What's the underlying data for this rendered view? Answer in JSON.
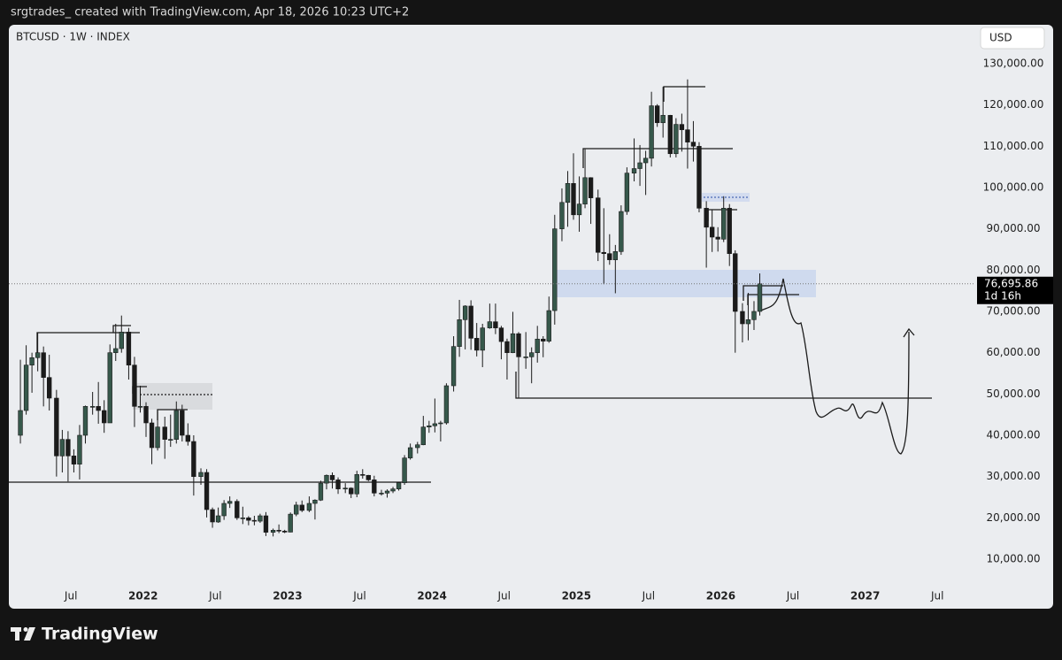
{
  "header": "srgtrades_ created with TradingView.com, Apr 18, 2026 10:23 UTC+2",
  "footer": "TradingView",
  "chart_data": {
    "type": "candlestick",
    "title": "BTCUSD · 1W · INDEX",
    "currency": "USD",
    "last_label": "76,695.86",
    "countdown": "1d 16h",
    "up_color": "#36584b",
    "down_color": "#1b1b1b",
    "last_tag_color": "#000000",
    "grid": false,
    "xlim": [
      2021.07,
      2027.75
    ],
    "ylim": [
      -2000,
      139000
    ],
    "xticks": [
      {
        "value": 2021.5,
        "label": "Jul"
      },
      2022,
      {
        "value": 2022.5,
        "label": "Jul"
      },
      2023,
      {
        "value": 2023.5,
        "label": "Jul"
      },
      2024,
      {
        "value": 2024.5,
        "label": "Jul"
      },
      2025,
      {
        "value": 2025.5,
        "label": "Jul"
      },
      2026,
      {
        "value": 2026.5,
        "label": "Jul"
      },
      2027,
      {
        "value": 2027.5,
        "label": "Jul"
      }
    ],
    "yticks": [
      {
        "value": 10000,
        "label": "10,000.00"
      },
      {
        "value": 20000,
        "label": "20,000.00"
      },
      {
        "value": 30000,
        "label": "30,000.00"
      },
      {
        "value": 40000,
        "label": "40,000.00"
      },
      {
        "value": 50000,
        "label": "50,000.00"
      },
      {
        "value": 60000,
        "label": "60,000.00"
      },
      {
        "value": 70000,
        "label": "70,000.00"
      },
      {
        "value": 80000,
        "label": "80,000.00"
      },
      {
        "value": 90000,
        "label": "90,000.00"
      },
      {
        "value": 100000,
        "label": "100,000.00"
      },
      {
        "value": 110000,
        "label": "110,000.00"
      },
      {
        "value": 120000,
        "label": "120,000.00"
      },
      {
        "value": 130000,
        "label": "130,000.00"
      }
    ],
    "x": [
      2021.15,
      2021.19,
      2021.23,
      2021.27,
      2021.31,
      2021.35,
      2021.4,
      2021.44,
      2021.48,
      2021.52,
      2021.56,
      2021.6,
      2021.65,
      2021.69,
      2021.73,
      2021.77,
      2021.81,
      2021.85,
      2021.9,
      2021.94,
      2021.98,
      2022.02,
      2022.06,
      2022.1,
      2022.15,
      2022.19,
      2022.23,
      2022.27,
      2022.31,
      2022.35,
      2022.4,
      2022.44,
      2022.48,
      2022.52,
      2022.56,
      2022.6,
      2022.65,
      2022.69,
      2022.73,
      2022.77,
      2022.81,
      2022.85,
      2022.9,
      2022.94,
      2022.98,
      2023.02,
      2023.06,
      2023.1,
      2023.15,
      2023.19,
      2023.23,
      2023.27,
      2023.31,
      2023.35,
      2023.4,
      2023.44,
      2023.48,
      2023.52,
      2023.56,
      2023.6,
      2023.65,
      2023.69,
      2023.73,
      2023.77,
      2023.81,
      2023.85,
      2023.9,
      2023.94,
      2023.98,
      2024.02,
      2024.06,
      2024.1,
      2024.15,
      2024.19,
      2024.23,
      2024.27,
      2024.31,
      2024.35,
      2024.4,
      2024.44,
      2024.48,
      2024.52,
      2024.56,
      2024.6,
      2024.65,
      2024.69,
      2024.73,
      2024.77,
      2024.81,
      2024.85,
      2024.9,
      2024.94,
      2024.98,
      2025.02,
      2025.06,
      2025.1,
      2025.15,
      2025.19,
      2025.23,
      2025.27,
      2025.31,
      2025.35,
      2025.4,
      2025.44,
      2025.48,
      2025.52,
      2025.56,
      2025.6,
      2025.65,
      2025.69,
      2025.73,
      2025.77,
      2025.81,
      2025.85,
      2025.9,
      2025.94,
      2025.98,
      2026.02,
      2026.06,
      2026.1,
      2026.15,
      2026.19,
      2026.23,
      2026.27
    ],
    "open": [
      40000,
      46000,
      57000,
      58800,
      60000,
      54000,
      49000,
      35000,
      39000,
      35000,
      33000,
      40000,
      47000,
      47000,
      46000,
      43000,
      60000,
      61000,
      65000,
      57000,
      47000,
      47000,
      43000,
      37000,
      42000,
      39000,
      39000,
      46000,
      40000,
      38500,
      30000,
      31000,
      22000,
      19000,
      20500,
      23500,
      24000,
      20000,
      20000,
      19400,
      19200,
      20500,
      16500,
      17000,
      16800,
      16550,
      20900,
      23100,
      21800,
      23500,
      24300,
      28400,
      30300,
      29200,
      27000,
      27200,
      25800,
      30500,
      30300,
      29200,
      26000,
      26000,
      26500,
      27000,
      28500,
      34500,
      37000,
      37700,
      42000,
      42300,
      42800,
      43000,
      52000,
      61500,
      68000,
      71300,
      63500,
      60600,
      66000,
      67500,
      66000,
      62700,
      60000,
      64600,
      59000,
      59000,
      60000,
      63300,
      62800,
      70200,
      90000,
      96400,
      101000,
      93400,
      96000,
      102400,
      97500,
      84300,
      84000,
      82500,
      84500,
      94200,
      103500,
      104600,
      106000,
      107100,
      119800,
      115700,
      117500,
      108200,
      115300,
      114000,
      111000,
      110000,
      95000,
      90400,
      88000,
      87500,
      95000,
      84000,
      70000,
      67000,
      68000,
      70000
    ],
    "high": [
      58300,
      61800,
      60000,
      64800,
      61500,
      59500,
      51000,
      41300,
      41000,
      36600,
      42500,
      47200,
      50500,
      52900,
      48500,
      62000,
      67000,
      69000,
      66000,
      59000,
      52000,
      48000,
      44000,
      45800,
      44500,
      45000,
      48200,
      47400,
      42900,
      40000,
      32000,
      31800,
      22500,
      22500,
      24300,
      25200,
      24500,
      22700,
      20400,
      20500,
      21000,
      21400,
      17400,
      18400,
      17100,
      21300,
      23900,
      24200,
      25200,
      24500,
      29000,
      30500,
      31000,
      29800,
      28400,
      27400,
      31400,
      31800,
      30400,
      30200,
      26800,
      26900,
      27500,
      28600,
      35200,
      38000,
      38400,
      44700,
      43500,
      48900,
      43500,
      52600,
      64000,
      72800,
      71500,
      72700,
      67200,
      67000,
      71900,
      71900,
      66500,
      63400,
      69900,
      65000,
      65000,
      61300,
      66500,
      64000,
      73600,
      93400,
      99800,
      104000,
      108300,
      102700,
      109300,
      102500,
      99500,
      95000,
      88700,
      86100,
      95700,
      104900,
      111900,
      110300,
      108900,
      123200,
      120200,
      124400,
      117600,
      116800,
      117900,
      126200,
      116100,
      111000,
      96700,
      94600,
      90400,
      97900,
      96000,
      84800,
      72000,
      74500,
      72500,
      79200
    ],
    "low": [
      38000,
      45000,
      50300,
      55500,
      47000,
      46000,
      30000,
      31000,
      28800,
      31000,
      29300,
      38000,
      45000,
      42800,
      40600,
      43000,
      58000,
      60000,
      53500,
      42000,
      45500,
      39600,
      33000,
      36300,
      34300,
      37200,
      38000,
      38500,
      37500,
      25400,
      28000,
      20100,
      17600,
      18800,
      19500,
      22400,
      19500,
      18500,
      18200,
      18200,
      18800,
      15600,
      15500,
      16300,
      16300,
      16500,
      20400,
      21400,
      21400,
      19600,
      24100,
      26900,
      27100,
      25800,
      26000,
      24800,
      25000,
      29500,
      28900,
      25200,
      25400,
      24900,
      26000,
      26600,
      28000,
      34100,
      35600,
      37600,
      40600,
      40700,
      38500,
      42600,
      50600,
      59000,
      60800,
      60700,
      59100,
      56500,
      65800,
      64500,
      58400,
      53500,
      59900,
      49100,
      56100,
      52600,
      57600,
      58900,
      62400,
      66800,
      87000,
      90500,
      92200,
      89300,
      95000,
      91200,
      82200,
      76600,
      81300,
      74400,
      83700,
      93400,
      101500,
      100400,
      98200,
      105100,
      114700,
      112100,
      107300,
      107300,
      108700,
      104600,
      106300,
      94000,
      80600,
      84400,
      84500,
      86800,
      81000,
      60000,
      62500,
      63000,
      65500,
      69000
    ],
    "close": [
      46000,
      57000,
      58800,
      60000,
      54000,
      49000,
      35000,
      39000,
      35000,
      33000,
      40000,
      47000,
      47000,
      46000,
      43000,
      60000,
      61000,
      65000,
      57000,
      47000,
      47000,
      43000,
      37000,
      42000,
      39000,
      39000,
      46000,
      40000,
      38500,
      30000,
      31000,
      22000,
      19000,
      20500,
      23500,
      24000,
      20000,
      20000,
      19400,
      19200,
      20500,
      16500,
      17000,
      16800,
      16550,
      20900,
      23100,
      21800,
      23500,
      24300,
      28400,
      30300,
      29200,
      27000,
      27200,
      25800,
      30500,
      30300,
      29200,
      26000,
      26000,
      26500,
      27000,
      28500,
      34500,
      37000,
      37700,
      42000,
      42300,
      42800,
      43000,
      52000,
      61500,
      68000,
      71300,
      63500,
      60600,
      66000,
      67500,
      66000,
      62700,
      60000,
      64600,
      59000,
      59000,
      60000,
      63300,
      62800,
      70200,
      90000,
      96400,
      101000,
      93400,
      96000,
      102400,
      97500,
      84300,
      84000,
      82500,
      84500,
      94200,
      103500,
      104600,
      106000,
      107100,
      119800,
      115700,
      117500,
      108200,
      115300,
      114000,
      111000,
      110000,
      95000,
      90400,
      88000,
      87500,
      95000,
      84000,
      70000,
      67000,
      68000,
      70000,
      76695.86
    ]
  }
}
